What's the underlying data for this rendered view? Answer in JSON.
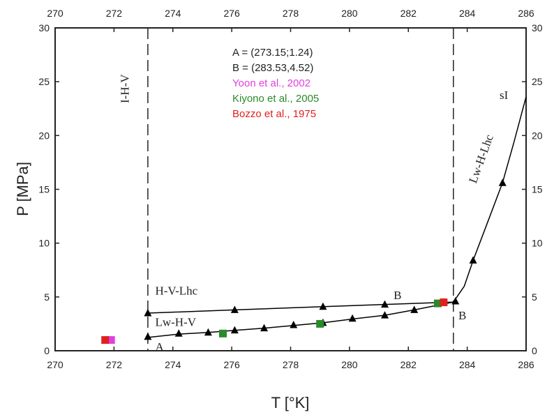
{
  "chart_data": {
    "type": "scatter",
    "xlabel": "T [°K]",
    "ylabel": "P [MPa]",
    "xlim": [
      270,
      286
    ],
    "ylim": [
      0,
      30
    ],
    "xticks": [
      "270",
      "272",
      "274",
      "276",
      "278",
      "280",
      "282",
      "284",
      "286"
    ],
    "yticks": [
      "0",
      "5",
      "10",
      "15",
      "20",
      "25",
      "30"
    ],
    "grid": false,
    "legend_lines": [
      {
        "text": "A = (273.15;1.24)",
        "color": "#222222"
      },
      {
        "text": "B = (283.53,4.52)",
        "color": "#222222"
      },
      {
        "text": "Yoon et al., 2002",
        "color": "#e040e0"
      },
      {
        "text": "Kiyono et al., 2005",
        "color": "#2a8a2a"
      },
      {
        "text": "Bozzo et al., 1975",
        "color": "#e02020"
      }
    ],
    "annotations": [
      {
        "text": "I-H-V",
        "x": 272.5,
        "y": 23,
        "rotate": -90,
        "color": "#222222"
      },
      {
        "text": "H-V-Lhc",
        "x": 273.4,
        "y": 5.2,
        "rotate": 0,
        "color": "#222222"
      },
      {
        "text": "Lw-H-V",
        "x": 273.4,
        "y": 2.3,
        "rotate": 0,
        "color": "#222222"
      },
      {
        "text": "A",
        "x": 273.4,
        "y": 0.0,
        "rotate": 0,
        "color": "#222222"
      },
      {
        "text": "B",
        "x": 281.5,
        "y": 4.8,
        "rotate": 0,
        "color": "#8b1a1a"
      },
      {
        "text": "B",
        "x": 283.7,
        "y": 2.9,
        "rotate": 0,
        "color": "#222222"
      },
      {
        "text": "Lw-H-Lhc",
        "x": 284.3,
        "y": 15.5,
        "rotate": -70,
        "color": "#222222"
      },
      {
        "text": "sI",
        "x": 285.1,
        "y": 23.4,
        "rotate": 0,
        "color": "#222222"
      }
    ],
    "vertical_dashed_lines": [
      273.15,
      283.53
    ],
    "series": [
      {
        "marker": "triangle",
        "color": "#000000",
        "points": [
          [
            273.15,
            3.5
          ],
          [
            276.1,
            3.8
          ],
          [
            279.1,
            4.1
          ],
          [
            281.2,
            4.3
          ],
          [
            283.6,
            4.6
          ],
          [
            273.15,
            1.3
          ],
          [
            274.2,
            1.6
          ],
          [
            275.2,
            1.7
          ],
          [
            276.1,
            1.9
          ],
          [
            277.1,
            2.1
          ],
          [
            278.1,
            2.4
          ],
          [
            279.1,
            2.6
          ],
          [
            280.1,
            3.0
          ],
          [
            281.2,
            3.3
          ],
          [
            282.2,
            3.8
          ],
          [
            283.2,
            4.5
          ],
          [
            284.2,
            8.4
          ],
          [
            285.2,
            15.6
          ]
        ]
      },
      {
        "marker": "line",
        "color": "#000000",
        "points": [
          [
            273.15,
            3.5
          ],
          [
            276.1,
            3.8
          ],
          [
            279.1,
            4.1
          ],
          [
            281.2,
            4.3
          ],
          [
            283.53,
            4.52
          ]
        ]
      },
      {
        "marker": "line",
        "color": "#000000",
        "points": [
          [
            273.15,
            1.24
          ],
          [
            274.2,
            1.55
          ],
          [
            275.2,
            1.7
          ],
          [
            276.1,
            1.9
          ],
          [
            277.1,
            2.1
          ],
          [
            278.1,
            2.35
          ],
          [
            279.1,
            2.6
          ],
          [
            280.1,
            2.95
          ],
          [
            281.2,
            3.3
          ],
          [
            282.2,
            3.8
          ],
          [
            283.53,
            4.52
          ]
        ]
      },
      {
        "marker": "line",
        "color": "#000000",
        "points": [
          [
            283.53,
            4.52
          ],
          [
            283.9,
            6.0
          ],
          [
            284.2,
            8.4
          ],
          [
            284.7,
            12.0
          ],
          [
            285.2,
            15.6
          ],
          [
            285.6,
            19.5
          ],
          [
            286.0,
            23.6
          ]
        ]
      },
      {
        "name": "Yoon et al., 2002",
        "marker": "square",
        "color": "#e040e0",
        "points": [
          [
            271.9,
            1.0
          ]
        ]
      },
      {
        "name": "Kiyono et al., 2005",
        "marker": "square",
        "color": "#2a8a2a",
        "points": [
          [
            275.7,
            1.6
          ],
          [
            279.0,
            2.5
          ],
          [
            283.0,
            4.4
          ]
        ]
      },
      {
        "name": "Bozzo et al., 1975",
        "marker": "square",
        "color": "#e02020",
        "points": [
          [
            271.7,
            1.0
          ],
          [
            283.2,
            4.5
          ]
        ]
      }
    ]
  }
}
